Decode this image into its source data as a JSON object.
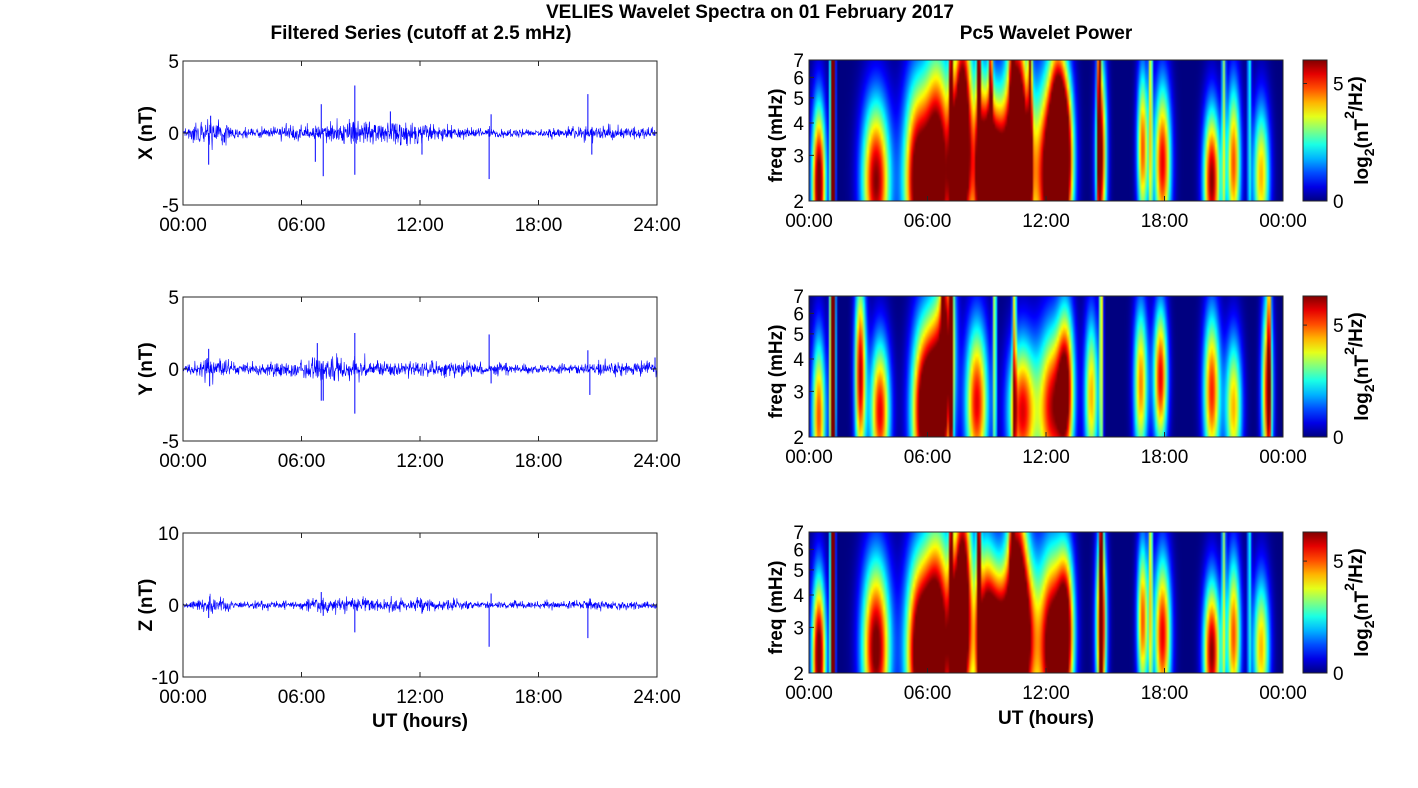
{
  "figure": {
    "title": "VELIES Wavelet Spectra on 01 February 2017",
    "left_column_title": "Filtered Series (cutoff at 2.5 mHz)",
    "right_column_title": "Pc5 Wavelet Power"
  },
  "colors": {
    "trace": "#0000ff",
    "frame": "#262626"
  },
  "chart_data": [
    {
      "type": "line",
      "component": "X",
      "ylabel": "X (nT)",
      "xlabel": "",
      "ylim": [
        -5,
        5
      ],
      "yticks": [
        -5,
        0,
        5
      ],
      "xlim": [
        0,
        24
      ],
      "xticks": [
        0,
        6,
        12,
        18,
        24
      ],
      "xtick_labels": [
        "00:00",
        "06:00",
        "12:00",
        "18:00",
        "24:00"
      ],
      "x_unit": "hours UT",
      "activity": [
        [
          0,
          0.25
        ],
        [
          1.3,
          0.9
        ],
        [
          3,
          0.3
        ],
        [
          6,
          0.5
        ],
        [
          8,
          0.7
        ],
        [
          11,
          0.75
        ],
        [
          13,
          0.5
        ],
        [
          15,
          0.3
        ],
        [
          18,
          0.25
        ],
        [
          21,
          0.45
        ],
        [
          24,
          0.3
        ]
      ],
      "spikes": [
        [
          1.3,
          -2.2
        ],
        [
          1.4,
          1.2
        ],
        [
          6.7,
          -2.0
        ],
        [
          7.0,
          2.0
        ],
        [
          7.1,
          -3.0
        ],
        [
          8.7,
          3.3
        ],
        [
          8.7,
          -2.9
        ],
        [
          10.5,
          1.5
        ],
        [
          12.1,
          -1.5
        ],
        [
          15.5,
          -3.2
        ],
        [
          15.6,
          1.3
        ],
        [
          20.5,
          2.7
        ],
        [
          20.7,
          -1.5
        ]
      ]
    },
    {
      "type": "line",
      "component": "Y",
      "ylabel": "Y (nT)",
      "xlabel": "",
      "ylim": [
        -5,
        5
      ],
      "yticks": [
        -5,
        0,
        5
      ],
      "xlim": [
        0,
        24
      ],
      "xticks": [
        0,
        6,
        12,
        18,
        24
      ],
      "xtick_labels": [
        "00:00",
        "06:00",
        "12:00",
        "18:00",
        "24:00"
      ],
      "x_unit": "hours UT",
      "activity": [
        [
          0,
          0.25
        ],
        [
          1.3,
          0.8
        ],
        [
          3,
          0.3
        ],
        [
          6,
          0.55
        ],
        [
          7,
          0.9
        ],
        [
          9,
          0.5
        ],
        [
          12,
          0.5
        ],
        [
          15,
          0.4
        ],
        [
          18,
          0.25
        ],
        [
          21,
          0.4
        ],
        [
          24,
          0.4
        ]
      ],
      "spikes": [
        [
          1.3,
          1.4
        ],
        [
          1.35,
          -1.2
        ],
        [
          6.8,
          1.8
        ],
        [
          7.0,
          -2.2
        ],
        [
          7.1,
          -2.2
        ],
        [
          8.7,
          2.5
        ],
        [
          8.7,
          -3.1
        ],
        [
          15.5,
          2.4
        ],
        [
          15.6,
          -1.0
        ],
        [
          20.5,
          1.3
        ],
        [
          20.6,
          -1.8
        ],
        [
          23.9,
          0.8
        ]
      ]
    },
    {
      "type": "line",
      "component": "Z",
      "ylabel": "Z (nT)",
      "xlabel": "UT (hours)",
      "ylim": [
        -10,
        10
      ],
      "yticks": [
        -10,
        0,
        10
      ],
      "xlim": [
        0,
        24
      ],
      "xticks": [
        0,
        6,
        12,
        18,
        24
      ],
      "xtick_labels": [
        "00:00",
        "06:00",
        "12:00",
        "18:00",
        "24:00"
      ],
      "x_unit": "hours UT",
      "activity": [
        [
          0,
          0.35
        ],
        [
          1.3,
          1.0
        ],
        [
          3,
          0.4
        ],
        [
          6,
          0.6
        ],
        [
          7,
          1.1
        ],
        [
          9,
          0.8
        ],
        [
          12,
          0.9
        ],
        [
          15,
          0.5
        ],
        [
          18,
          0.4
        ],
        [
          21,
          0.6
        ],
        [
          24,
          0.5
        ]
      ],
      "spikes": [
        [
          1.3,
          -1.8
        ],
        [
          1.35,
          1.2
        ],
        [
          7.0,
          1.8
        ],
        [
          7.1,
          -1.5
        ],
        [
          8.7,
          -3.8
        ],
        [
          12.1,
          -1.2
        ],
        [
          15.5,
          -5.8
        ],
        [
          15.6,
          1.6
        ],
        [
          20.5,
          -4.6
        ],
        [
          20.6,
          0.9
        ]
      ]
    },
    {
      "type": "heatmap",
      "component": "X",
      "ylabel": "freq (mHz)",
      "xlabel": "",
      "ylim": [
        2,
        7
      ],
      "yscale": "log",
      "yticks": [
        2,
        3,
        4,
        5,
        6,
        7
      ],
      "xlim": [
        0,
        24
      ],
      "xtick_labels": [
        "00:00",
        "06:00",
        "12:00",
        "18:00",
        "00:00"
      ],
      "colorbar_label": "log2(nT2/Hz)",
      "colorbar_ticks": [
        0,
        5
      ],
      "crange": [
        0,
        6
      ],
      "colormap": "jet",
      "blobs": [
        [
          0.5,
          2.3,
          1.1,
          0.25,
          0.5
        ],
        [
          1.2,
          2.8,
          1.1,
          0.08,
          1.2
        ],
        [
          3.4,
          2.4,
          1.0,
          0.5,
          0.5
        ],
        [
          5.5,
          2.4,
          1.1,
          0.5,
          0.6
        ],
        [
          6.5,
          2.6,
          1.15,
          0.45,
          0.7
        ],
        [
          7.6,
          2.7,
          1.0,
          0.4,
          0.55
        ],
        [
          8.8,
          2.6,
          1.0,
          0.4,
          0.6
        ],
        [
          9.6,
          2.4,
          1.2,
          0.5,
          0.5
        ],
        [
          10.8,
          2.7,
          1.0,
          0.45,
          0.55
        ],
        [
          12.2,
          2.5,
          1.15,
          0.5,
          0.6
        ],
        [
          13.0,
          2.9,
          0.95,
          0.3,
          0.5
        ],
        [
          14.8,
          3.0,
          0.9,
          0.2,
          0.6
        ],
        [
          16.9,
          3.2,
          0.8,
          0.2,
          0.5
        ],
        [
          17.9,
          2.8,
          0.9,
          0.3,
          0.5
        ],
        [
          20.4,
          2.4,
          1.0,
          0.3,
          0.45
        ],
        [
          21.5,
          2.8,
          0.8,
          0.25,
          0.5
        ],
        [
          22.9,
          2.5,
          0.7,
          0.3,
          0.45
        ],
        [
          7.8,
          4.8,
          0.8,
          0.3,
          0.7
        ],
        [
          10.5,
          4.6,
          0.8,
          0.35,
          0.8
        ],
        [
          12.6,
          3.8,
          0.8,
          0.3,
          0.6
        ]
      ],
      "ridges": [
        [
          1.2,
          1.0
        ],
        [
          7.2,
          0.8
        ],
        [
          8.6,
          0.9
        ],
        [
          9.2,
          0.7
        ],
        [
          10.3,
          0.8
        ],
        [
          11.2,
          0.7
        ],
        [
          14.7,
          0.8
        ],
        [
          17.3,
          0.6
        ],
        [
          21.0,
          0.5
        ],
        [
          22.3,
          0.4
        ]
      ]
    },
    {
      "type": "heatmap",
      "component": "Y",
      "ylabel": "freq (mHz)",
      "xlabel": "",
      "ylim": [
        2,
        7
      ],
      "yscale": "log",
      "yticks": [
        2,
        3,
        4,
        5,
        6,
        7
      ],
      "xlim": [
        0,
        24
      ],
      "xtick_labels": [
        "00:00",
        "06:00",
        "12:00",
        "18:00",
        "00:00"
      ],
      "colorbar_label": "log2(nT2/Hz)",
      "colorbar_ticks": [
        0,
        5
      ],
      "crange": [
        0,
        6.3
      ],
      "colormap": "jet",
      "blobs": [
        [
          0.5,
          2.4,
          0.8,
          0.25,
          0.5
        ],
        [
          1.2,
          3.5,
          1.0,
          0.1,
          1.0
        ],
        [
          2.6,
          3.5,
          0.95,
          0.2,
          0.6
        ],
        [
          3.6,
          2.5,
          0.9,
          0.35,
          0.45
        ],
        [
          5.8,
          2.5,
          1.05,
          0.45,
          0.55
        ],
        [
          6.5,
          2.7,
          0.95,
          0.4,
          0.6
        ],
        [
          8.5,
          2.7,
          0.9,
          0.4,
          0.5
        ],
        [
          10.8,
          2.5,
          0.9,
          0.5,
          0.45
        ],
        [
          12.3,
          2.6,
          0.9,
          0.5,
          0.5
        ],
        [
          13.0,
          3.1,
          0.9,
          0.3,
          0.5
        ],
        [
          14.3,
          2.9,
          0.7,
          0.25,
          0.5
        ],
        [
          16.8,
          3.2,
          0.75,
          0.25,
          0.5
        ],
        [
          17.8,
          3.4,
          0.9,
          0.25,
          0.45
        ],
        [
          20.4,
          3.0,
          0.85,
          0.3,
          0.5
        ],
        [
          21.5,
          2.6,
          0.7,
          0.3,
          0.45
        ],
        [
          23.2,
          3.0,
          0.85,
          0.2,
          0.6
        ],
        [
          7.0,
          4.8,
          0.7,
          0.3,
          0.7
        ]
      ],
      "ridges": [
        [
          1.2,
          1.0
        ],
        [
          6.8,
          0.8
        ],
        [
          7.2,
          0.9
        ],
        [
          9.4,
          0.6
        ],
        [
          10.4,
          0.6
        ],
        [
          14.8,
          0.7
        ],
        [
          23.3,
          0.5
        ]
      ]
    },
    {
      "type": "heatmap",
      "component": "Z",
      "ylabel": "freq (mHz)",
      "xlabel": "UT (hours)",
      "ylim": [
        2,
        7
      ],
      "yscale": "log",
      "yticks": [
        2,
        3,
        4,
        5,
        6,
        7
      ],
      "xlim": [
        0,
        24
      ],
      "xtick_labels": [
        "00:00",
        "06:00",
        "12:00",
        "18:00",
        "00:00"
      ],
      "colorbar_label": "log2(nT2/Hz)",
      "colorbar_ticks": [
        0,
        5
      ],
      "crange": [
        0,
        6.3
      ],
      "colormap": "jet",
      "blobs": [
        [
          0.5,
          2.3,
          1.1,
          0.25,
          0.5
        ],
        [
          1.2,
          2.8,
          1.05,
          0.08,
          1.2
        ],
        [
          3.4,
          2.5,
          1.05,
          0.5,
          0.55
        ],
        [
          5.6,
          2.4,
          1.15,
          0.5,
          0.6
        ],
        [
          6.5,
          2.6,
          1.15,
          0.45,
          0.7
        ],
        [
          7.6,
          2.7,
          1.0,
          0.4,
          0.55
        ],
        [
          8.9,
          2.6,
          1.0,
          0.4,
          0.6
        ],
        [
          9.7,
          2.4,
          1.2,
          0.5,
          0.5
        ],
        [
          10.9,
          2.7,
          1.0,
          0.45,
          0.55
        ],
        [
          12.3,
          2.5,
          1.15,
          0.5,
          0.6
        ],
        [
          13.0,
          2.9,
          0.95,
          0.3,
          0.5
        ],
        [
          14.8,
          3.0,
          0.9,
          0.2,
          0.6
        ],
        [
          16.9,
          3.2,
          0.8,
          0.2,
          0.5
        ],
        [
          17.9,
          2.8,
          0.9,
          0.3,
          0.5
        ],
        [
          20.4,
          2.4,
          1.0,
          0.3,
          0.45
        ],
        [
          21.5,
          2.8,
          0.8,
          0.25,
          0.5
        ],
        [
          22.9,
          2.5,
          0.7,
          0.3,
          0.45
        ],
        [
          7.8,
          4.8,
          0.8,
          0.3,
          0.7
        ],
        [
          10.5,
          4.6,
          0.8,
          0.35,
          0.8
        ]
      ],
      "ridges": [
        [
          1.2,
          1.0
        ],
        [
          7.2,
          0.8
        ],
        [
          8.6,
          0.9
        ],
        [
          10.3,
          0.8
        ],
        [
          14.8,
          0.9
        ],
        [
          17.3,
          0.6
        ],
        [
          21.0,
          0.5
        ],
        [
          22.3,
          0.4
        ]
      ]
    }
  ]
}
